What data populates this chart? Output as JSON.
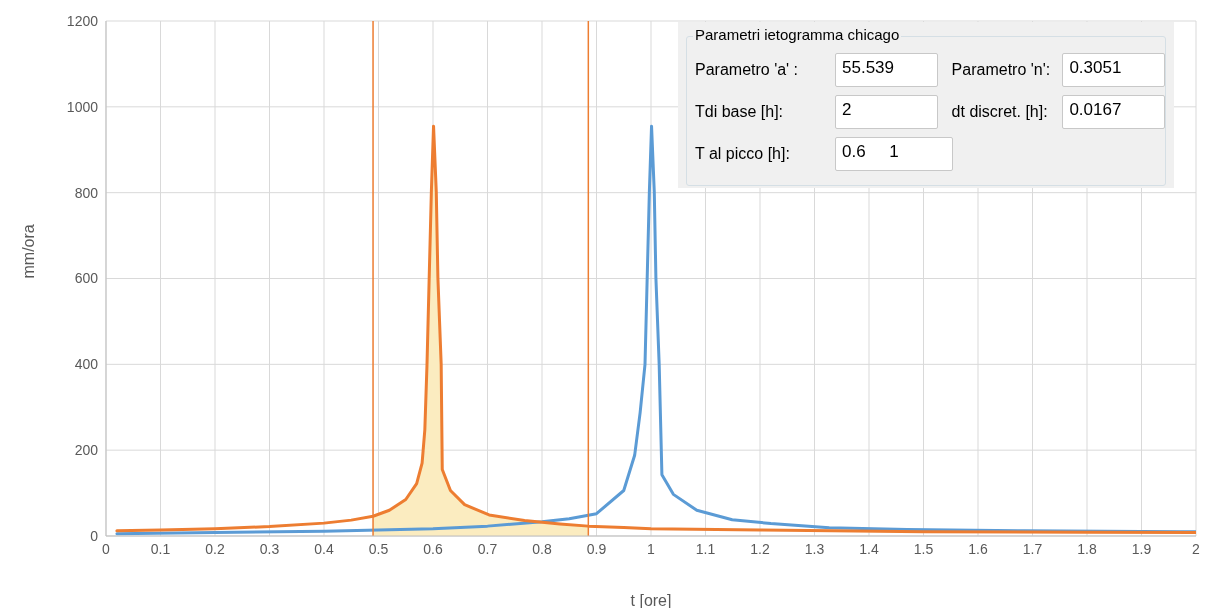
{
  "chart_data": [
    {
      "type": "line",
      "xlabel": "t [ore]",
      "ylabel": "mm/ora",
      "xlim": [
        0,
        2
      ],
      "ylim": [
        0,
        1200
      ],
      "xticks": [
        0,
        0.1,
        0.2,
        0.3,
        0.4,
        0.5,
        0.6,
        0.7,
        0.8,
        0.9,
        1,
        1.1,
        1.2,
        1.3,
        1.4,
        1.5,
        1.6,
        1.7,
        1.8,
        1.9,
        2
      ],
      "yticks": [
        0,
        200,
        400,
        600,
        800,
        1000,
        1200
      ],
      "grid": true,
      "series": [
        {
          "type": "area",
          "color": "#fbecc0",
          "x": [
            0.49,
            0.52,
            0.55,
            0.57,
            0.58,
            0.585,
            0.589,
            0.593,
            0.597,
            0.601,
            0.606,
            0.609,
            0.615,
            0.617,
            0.632,
            0.658,
            0.703,
            0.768,
            0.833,
            0.885
          ],
          "values": [
            46,
            60,
            85,
            122,
            170,
            247,
            400,
            601,
            802,
            955,
            802,
            601,
            400,
            155,
            106,
            73,
            49,
            36,
            28,
            23
          ]
        },
        {
          "color": "#5b9bd5",
          "x": [
            0.02,
            0.2,
            0.4,
            0.5,
            0.6,
            0.7,
            0.8,
            0.85,
            0.9,
            0.95,
            0.97,
            0.98,
            0.989,
            0.993,
            0.997,
            1.001,
            1.006,
            1.009,
            1.015,
            1.02,
            1.041,
            1.084,
            1.149,
            1.22,
            1.327,
            1.47,
            1.685,
            1.972,
            2
          ],
          "values": [
            5,
            8,
            11,
            14,
            17,
            23,
            33,
            40,
            52,
            106,
            188,
            287,
            400,
            601,
            802,
            955,
            802,
            601,
            400,
            143,
            97,
            60,
            38,
            29,
            19,
            15,
            12,
            10,
            10
          ]
        },
        {
          "color": "#ed7d31",
          "x": [
            0.02,
            0.1,
            0.2,
            0.3,
            0.4,
            0.45,
            0.49,
            0.52,
            0.55,
            0.57,
            0.58,
            0.585,
            0.589,
            0.593,
            0.597,
            0.601,
            0.606,
            0.609,
            0.615,
            0.617,
            0.632,
            0.658,
            0.703,
            0.768,
            0.833,
            0.885,
            0.95,
            1,
            1.2,
            1.5,
            1.8,
            2
          ],
          "values": [
            12,
            14,
            17,
            22,
            30,
            37,
            46,
            60,
            85,
            122,
            170,
            247,
            400,
            601,
            802,
            955,
            802,
            601,
            400,
            155,
            106,
            73,
            49,
            36,
            28,
            23,
            20,
            17,
            14,
            10,
            9,
            8
          ]
        }
      ],
      "ref_lines": [
        {
          "axis": "x",
          "value": 0.49,
          "color": "#ed7d31"
        },
        {
          "axis": "x",
          "value": 0.885,
          "color": "#ed7d31"
        }
      ]
    },
    {
      "type": "other",
      "title": "Parametri ietogramma chicago",
      "annotations": [
        "Parametro 'a' :",
        "55.539",
        "Parametro 'n':",
        "0.3051",
        "Tdi base [h]:",
        "2",
        "dt discret. [h]:",
        "0.0167",
        "T al picco [h]:",
        "0.6     1"
      ]
    }
  ]
}
